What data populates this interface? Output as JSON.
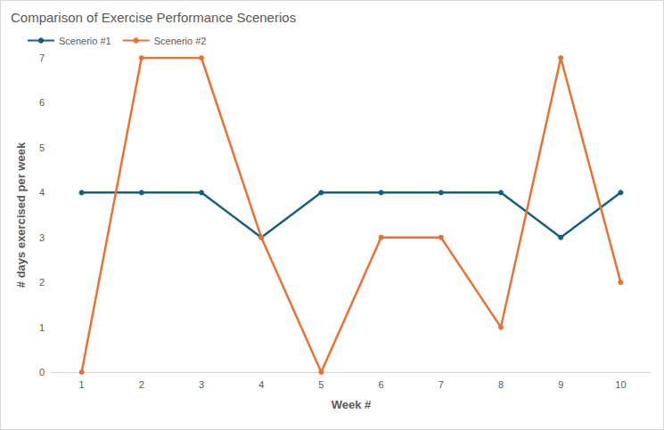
{
  "chart_data": {
    "type": "line",
    "title": "Comparison of Exercise Performance Scenerios",
    "x_label": "Week #",
    "y_label": "# days exercised per week",
    "categories": [
      "1",
      "2",
      "3",
      "4",
      "5",
      "6",
      "7",
      "8",
      "9",
      "10"
    ],
    "series": [
      {
        "name": "Scenerio #1",
        "color": "#156082",
        "values": [
          4,
          4,
          4,
          3,
          4,
          4,
          4,
          4,
          3,
          4
        ]
      },
      {
        "name": "Scenerio #2",
        "color": "#e97132",
        "values": [
          0,
          7,
          7,
          3,
          0,
          3,
          3,
          1,
          7,
          2
        ]
      }
    ],
    "ylim": [
      0,
      7
    ],
    "yticks": [
      0,
      1,
      2,
      3,
      4,
      5,
      6,
      7
    ],
    "grid": false,
    "legend": "top-left",
    "marker": "circle"
  }
}
